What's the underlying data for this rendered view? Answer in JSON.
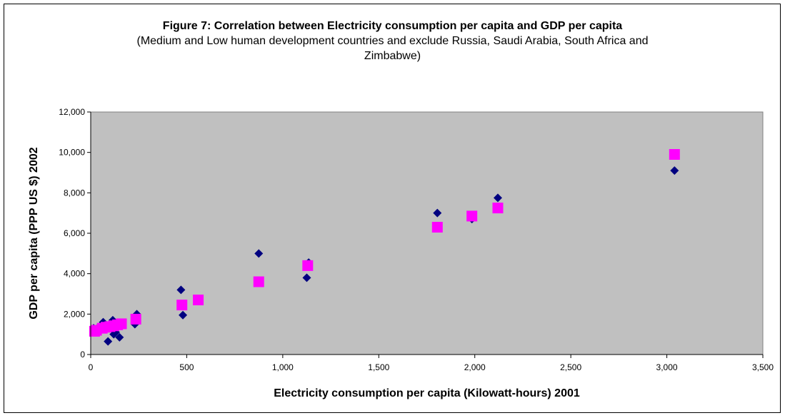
{
  "chart_data": {
    "type": "scatter",
    "title": "Figure 7: Correlation between Electricity consumption per capita and GDP per capita",
    "subtitle": "(Medium and Low human development countries and exclude Russia, Saudi Arabia, South Africa and Zimbabwe)",
    "xlabel": "Electricity consumption per capita (Kilowatt-hours) 2001",
    "ylabel": "GDP per capita (PPP US $) 2002",
    "xlim": [
      0,
      3500
    ],
    "ylim": [
      0,
      12000
    ],
    "x_ticks": [
      "0",
      "500",
      "1,000",
      "1,500",
      "2,000",
      "2,500",
      "3,000",
      "3,500"
    ],
    "y_ticks": [
      "0",
      "2,000",
      "4,000",
      "6,000",
      "8,000",
      "10,000",
      "12,000"
    ],
    "grid": false,
    "legend": "none",
    "plot_background": "#C0C0C0",
    "series": [
      {
        "marker": "diamond",
        "color": "#000080",
        "points": [
          [
            15,
            1300
          ],
          [
            25,
            1150
          ],
          [
            40,
            1350
          ],
          [
            55,
            1450
          ],
          [
            65,
            1600
          ],
          [
            80,
            1400
          ],
          [
            90,
            650
          ],
          [
            100,
            1500
          ],
          [
            110,
            1300
          ],
          [
            115,
            1700
          ],
          [
            120,
            1000
          ],
          [
            130,
            1100
          ],
          [
            150,
            850
          ],
          [
            160,
            1550
          ],
          [
            230,
            1500
          ],
          [
            240,
            2000
          ],
          [
            470,
            3200
          ],
          [
            480,
            1950
          ],
          [
            560,
            2650
          ],
          [
            875,
            5000
          ],
          [
            1125,
            3800
          ],
          [
            1135,
            4550
          ],
          [
            1805,
            7000
          ],
          [
            1985,
            6700
          ],
          [
            2120,
            7750
          ],
          [
            3040,
            9100
          ]
        ]
      },
      {
        "marker": "square",
        "color": "#FF00FF",
        "points": [
          [
            20,
            1150
          ],
          [
            30,
            1200
          ],
          [
            60,
            1300
          ],
          [
            80,
            1350
          ],
          [
            100,
            1380
          ],
          [
            120,
            1420
          ],
          [
            140,
            1470
          ],
          [
            160,
            1520
          ],
          [
            235,
            1750
          ],
          [
            475,
            2450
          ],
          [
            560,
            2700
          ],
          [
            875,
            3600
          ],
          [
            1130,
            4400
          ],
          [
            1805,
            6300
          ],
          [
            1985,
            6850
          ],
          [
            2120,
            7250
          ],
          [
            3040,
            9900
          ]
        ]
      }
    ]
  }
}
